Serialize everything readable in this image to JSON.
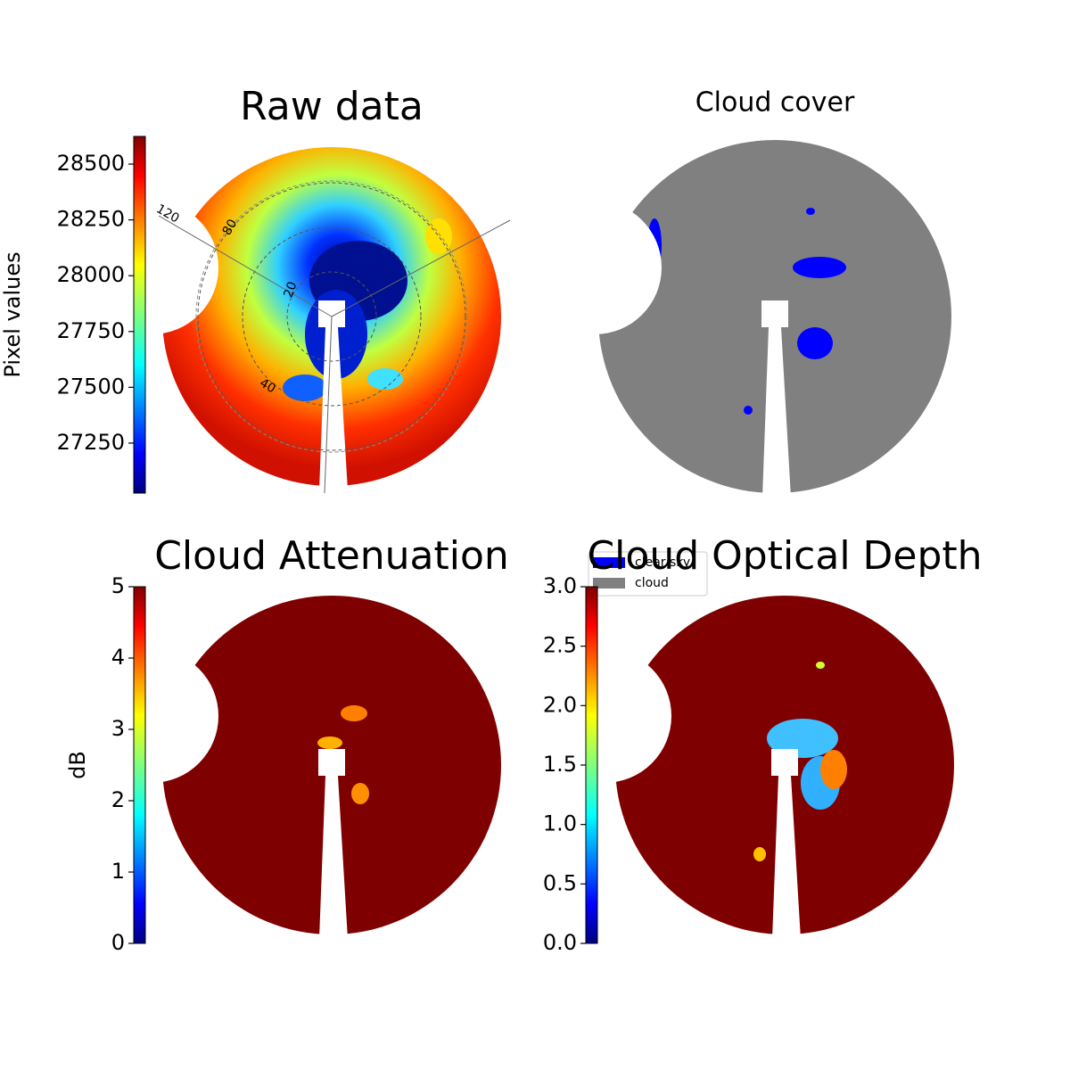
{
  "chart_data": [
    {
      "type": "image",
      "title": "Raw data",
      "colormap": "jet",
      "colorbar_label": "Pixel values",
      "clim": [
        27026,
        28624
      ],
      "yticks": [
        27250,
        27500,
        27750,
        28000,
        28250,
        28500
      ],
      "annotations": [
        "120",
        "80",
        "20",
        "40"
      ]
    },
    {
      "type": "mask",
      "title": "Cloud cover",
      "series": [
        {
          "name": "clear sky",
          "color": "#0000ff"
        },
        {
          "name": "cloud",
          "color": "#808080"
        }
      ]
    },
    {
      "type": "image",
      "title": "Cloud Attenuation",
      "colormap": "jet",
      "colorbar_label": "dB",
      "clim": [
        0,
        5
      ],
      "yticks": [
        0,
        1,
        2,
        3,
        4,
        5
      ]
    },
    {
      "type": "image",
      "title": "Cloud Optical Depth",
      "colormap": "jet",
      "clim": [
        0,
        3
      ],
      "yticks": [
        {
          "value": 0,
          "label": "0.0"
        },
        {
          "value": 0.5,
          "label": "0.5"
        },
        {
          "value": 1,
          "label": "1.0"
        },
        {
          "value": 1.5,
          "label": "1.5"
        },
        {
          "value": 2,
          "label": "2.0"
        },
        {
          "value": 2.5,
          "label": "2.5"
        },
        {
          "value": 3,
          "label": "3.0"
        }
      ]
    }
  ]
}
